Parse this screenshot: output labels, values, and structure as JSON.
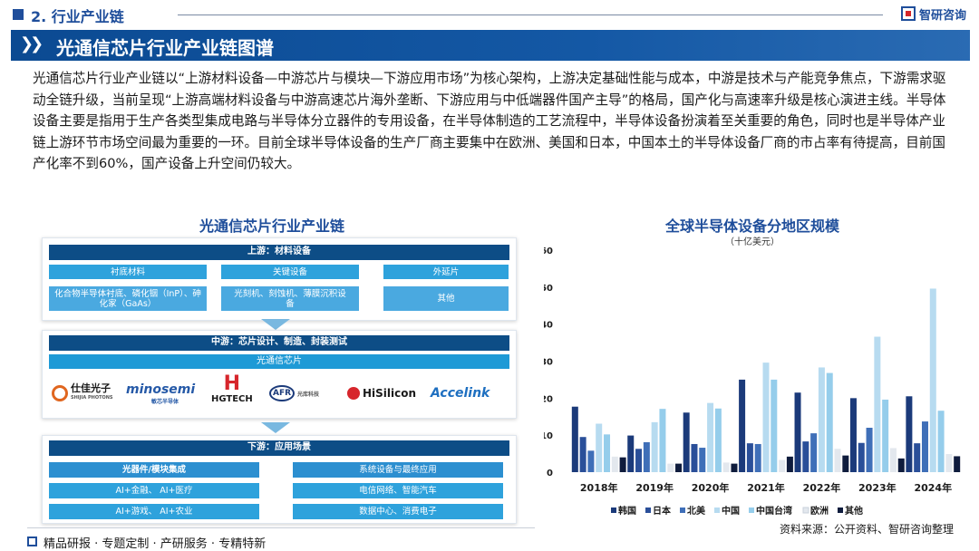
{
  "header": {
    "section": "2. 行业产业链",
    "brand": "智研咨询"
  },
  "banner": {
    "title": "光通信芯片行业产业链图谱"
  },
  "description": "光通信芯片行业产业链以“上游材料设备—中游芯片与模块—下游应用市场”为核心架构，上游决定基础性能与成本，中游是技术与产能竞争焦点，下游需求驱动全链升级，当前呈现“上游高端材料设备与中游高速芯片海外垄断、下游应用与中低端器件国产主导”的格局，国产化与高速率升级是核心演进主线。半导体设备主要是指用于生产各类型集成电路与半导体分立器件的专用设备，在半导体制造的工艺流程中，半导体设备扮演着至关重要的角色，同时也是半导体产业链上游环节市场空间最为重要的一环。目前全球半导体设备的生产厂商主要集中在欧洲、美国和日本，中国本土的半导体设备厂商的市占率有待提高，目前国产化率不到60%，国产设备上升空间仍较大。",
  "chain": {
    "title": "光通信芯片行业产业链",
    "upstream": {
      "header": "上游：材料设备",
      "categories": [
        "衬底材料",
        "关键设备",
        "外延片"
      ],
      "items": [
        "化合物半导体衬底、磷化铟（InP）、砷化家（GaAs）",
        "光刻机、刻蚀机、薄膜沉积设备",
        "其他"
      ]
    },
    "midstream": {
      "header": "中游：芯片设计、制造、封装测试",
      "sub": "光通信芯片",
      "companies": [
        {
          "name": "仕佳光子",
          "sub": "SHIJIA PHOTONS"
        },
        {
          "name": "minosemi",
          "sub": "敏芯半导体"
        },
        {
          "name": "HGTECH",
          "sub": ""
        },
        {
          "name": "AFR",
          "sub": "光库科技"
        },
        {
          "name": "HiSilicon",
          "sub": ""
        },
        {
          "name": "Accelink",
          "sub": ""
        }
      ]
    },
    "downstream": {
      "header": "下游：应用场景",
      "left_header": "光器件/模块集成",
      "right_header": "系统设备与最终应用",
      "left_items": [
        "AI+金融、 AI+医疗",
        "AI+游戏、 AI+农业"
      ],
      "right_items": [
        "电信网络、智能汽车",
        "数据中心、消费电子"
      ]
    }
  },
  "chart_data": {
    "type": "bar",
    "title": "全球半导体设备分地区规模",
    "subtitle": "（十亿美元）",
    "categories": [
      "2018年",
      "2019年",
      "2020年",
      "2021年",
      "2022年",
      "2023年",
      "2024年"
    ],
    "ylim": [
      0,
      60
    ],
    "yticks": [
      0,
      10,
      20,
      30,
      40,
      50,
      60
    ],
    "series": [
      {
        "name": "韩国",
        "color": "#1b3a7a",
        "values": [
          17.7,
          9.9,
          16.1,
          25.0,
          21.5,
          20.0,
          20.5
        ]
      },
      {
        "name": "日本",
        "color": "#2a4f99",
        "values": [
          9.5,
          6.3,
          7.6,
          7.8,
          8.3,
          7.9,
          7.8
        ]
      },
      {
        "name": "北美",
        "color": "#3f6fb8",
        "values": [
          5.8,
          8.1,
          6.6,
          7.6,
          10.5,
          12.0,
          13.7
        ]
      },
      {
        "name": "中国",
        "color": "#b7dbf0",
        "values": [
          13.1,
          13.5,
          18.7,
          29.6,
          28.3,
          36.6,
          49.6
        ]
      },
      {
        "name": "中国台湾",
        "color": "#95cdeb",
        "values": [
          10.2,
          17.1,
          17.2,
          25.0,
          26.8,
          19.6,
          16.6
        ]
      },
      {
        "name": "欧洲",
        "color": "#e3e8ee",
        "values": [
          4.2,
          2.3,
          2.6,
          3.3,
          6.3,
          6.5,
          4.9
        ]
      },
      {
        "name": "其他",
        "color": "#0f1c3d",
        "values": [
          4.0,
          2.3,
          2.3,
          4.2,
          4.5,
          3.7,
          4.3
        ]
      }
    ]
  },
  "footer": {
    "text": "精品研报 · 专题定制 · 产研服务 · 专精特新",
    "source": "资料来源：公开资料、智研咨询整理"
  }
}
